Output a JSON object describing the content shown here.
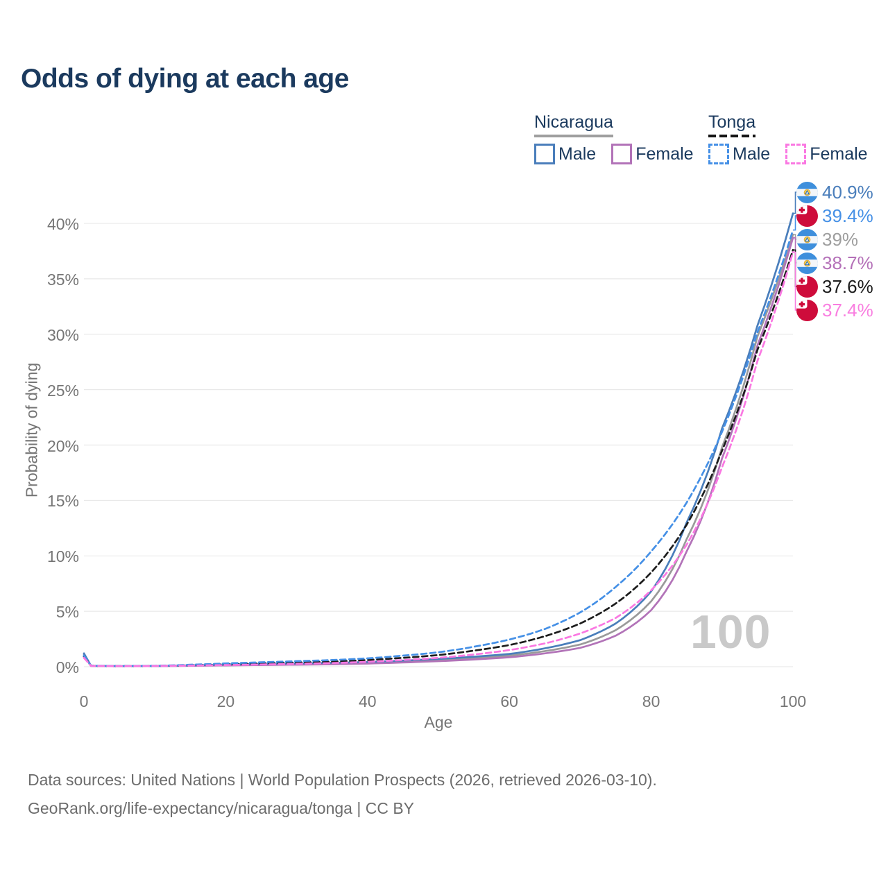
{
  "title": "Odds of dying at each age",
  "watermark": "100",
  "colors": {
    "title_text": "#1B3A5E",
    "axis_text": "#767676",
    "grid": "#E9E9E9",
    "footer_text": "#6C6C6C",
    "watermark": "#C9C9C9",
    "background": "#FFFFFF"
  },
  "legend": {
    "groups": [
      {
        "country": "Nicaragua",
        "line_style": "solid",
        "line_color": "#9A9A9A",
        "items": [
          {
            "label": "Male",
            "color": "#4A7EBB",
            "dash": false
          },
          {
            "label": "Female",
            "color": "#B273B8",
            "dash": false
          }
        ]
      },
      {
        "country": "Tonga",
        "line_style": "dashed",
        "line_color": "#1C1C1C",
        "items": [
          {
            "label": "Male",
            "color": "#4590E6",
            "dash": true
          },
          {
            "label": "Female",
            "color": "#FA78E2",
            "dash": true
          }
        ]
      }
    ]
  },
  "chart_data": {
    "type": "line",
    "title": "Odds of dying at each age",
    "xlabel": "Age",
    "ylabel": "Probability of dying",
    "xlim": [
      0,
      100
    ],
    "ylim": [
      0,
      43
    ],
    "grid": "horizontal-only",
    "legend_position": "top-right",
    "x_ticks": [
      {
        "v": 0,
        "label": "0"
      },
      {
        "v": 20,
        "label": "20"
      },
      {
        "v": 40,
        "label": "40"
      },
      {
        "v": 60,
        "label": "60"
      },
      {
        "v": 80,
        "label": "80"
      },
      {
        "v": 100,
        "label": "100"
      }
    ],
    "y_ticks": [
      {
        "v": 0,
        "label": "0%"
      },
      {
        "v": 5,
        "label": "5%"
      },
      {
        "v": 10,
        "label": "10%"
      },
      {
        "v": 15,
        "label": "15%"
      },
      {
        "v": 20,
        "label": "20%"
      },
      {
        "v": 25,
        "label": "25%"
      },
      {
        "v": 30,
        "label": "30%"
      },
      {
        "v": 35,
        "label": "35%"
      },
      {
        "v": 40,
        "label": "40%"
      }
    ],
    "x": [
      0,
      1,
      5,
      10,
      15,
      20,
      25,
      30,
      35,
      40,
      45,
      50,
      55,
      60,
      65,
      70,
      75,
      80,
      85,
      90,
      95,
      100
    ],
    "series": [
      {
        "id": "nicaragua_total",
        "name": "Nicaragua (both sexes)",
        "color": "#9A9A9A",
        "dash": null,
        "end_label": "39%",
        "values": [
          1.1,
          0.07,
          0.05,
          0.05,
          0.1,
          0.16,
          0.2,
          0.24,
          0.28,
          0.35,
          0.46,
          0.6,
          0.78,
          1.0,
          1.4,
          2.0,
          3.3,
          5.9,
          11.5,
          19.8,
          29.8,
          39.0
        ]
      },
      {
        "id": "nicaragua_female",
        "name": "Nicaragua Female",
        "color": "#B273B8",
        "dash": null,
        "end_label": "38.7%",
        "values": [
          1.0,
          0.07,
          0.04,
          0.05,
          0.08,
          0.12,
          0.15,
          0.18,
          0.22,
          0.28,
          0.38,
          0.5,
          0.65,
          0.85,
          1.2,
          1.7,
          2.8,
          5.1,
          10.4,
          18.8,
          29.0,
          38.7
        ]
      },
      {
        "id": "nicaragua_male",
        "name": "Nicaragua Male",
        "color": "#4A7EBB",
        "dash": null,
        "end_label": "40.9%",
        "values": [
          1.2,
          0.08,
          0.05,
          0.06,
          0.12,
          0.2,
          0.26,
          0.3,
          0.35,
          0.42,
          0.55,
          0.7,
          0.9,
          1.15,
          1.65,
          2.4,
          3.9,
          6.8,
          13.0,
          21.5,
          30.8,
          40.9
        ]
      },
      {
        "id": "tonga_total",
        "name": "Tonga (both sexes)",
        "color": "#1C1C1C",
        "dash": "8 5",
        "end_label": "37.6%",
        "values": [
          0.9,
          0.08,
          0.05,
          0.07,
          0.14,
          0.22,
          0.3,
          0.38,
          0.46,
          0.6,
          0.8,
          1.05,
          1.45,
          1.95,
          2.75,
          3.9,
          5.7,
          8.5,
          12.8,
          19.5,
          28.6,
          37.6
        ]
      },
      {
        "id": "tonga_male",
        "name": "Tonga Male",
        "color": "#4590E6",
        "dash": "8 5",
        "end_label": "39.4%",
        "values": [
          1.0,
          0.09,
          0.06,
          0.08,
          0.18,
          0.3,
          0.4,
          0.5,
          0.6,
          0.75,
          1.0,
          1.3,
          1.8,
          2.45,
          3.4,
          4.9,
          7.2,
          10.4,
          14.8,
          21.2,
          30.2,
          39.4
        ]
      },
      {
        "id": "tonga_female",
        "name": "Tonga Female",
        "color": "#FA78E2",
        "dash": "8 5",
        "end_label": "37.4%",
        "values": [
          0.8,
          0.07,
          0.05,
          0.06,
          0.1,
          0.15,
          0.2,
          0.26,
          0.33,
          0.44,
          0.6,
          0.8,
          1.1,
          1.5,
          2.1,
          3.0,
          4.4,
          6.9,
          11.0,
          18.0,
          27.6,
          37.4
        ]
      }
    ]
  },
  "end_labels": [
    {
      "series": "nicaragua_male",
      "flag": "nicaragua",
      "value": "40.9%",
      "color": "#4A7EBB"
    },
    {
      "series": "tonga_male",
      "flag": "tonga",
      "value": "39.4%",
      "color": "#4590E6"
    },
    {
      "series": "nicaragua_total",
      "flag": "nicaragua",
      "value": "39%",
      "color": "#9E9E9E"
    },
    {
      "series": "nicaragua_female",
      "flag": "nicaragua",
      "value": "38.7%",
      "color": "#B470B8"
    },
    {
      "series": "tonga_total",
      "flag": "tonga",
      "value": "37.6%",
      "color": "#1C1C1C"
    },
    {
      "series": "tonga_female",
      "flag": "tonga",
      "value": "37.4%",
      "color": "#F97EE0"
    }
  ],
  "footer": {
    "line1": "Data sources: United Nations | World Population Prospects (2026, retrieved 2026-03-10).",
    "line2": "GeoRank.org/life-expectancy/nicaragua/tonga | CC BY"
  }
}
